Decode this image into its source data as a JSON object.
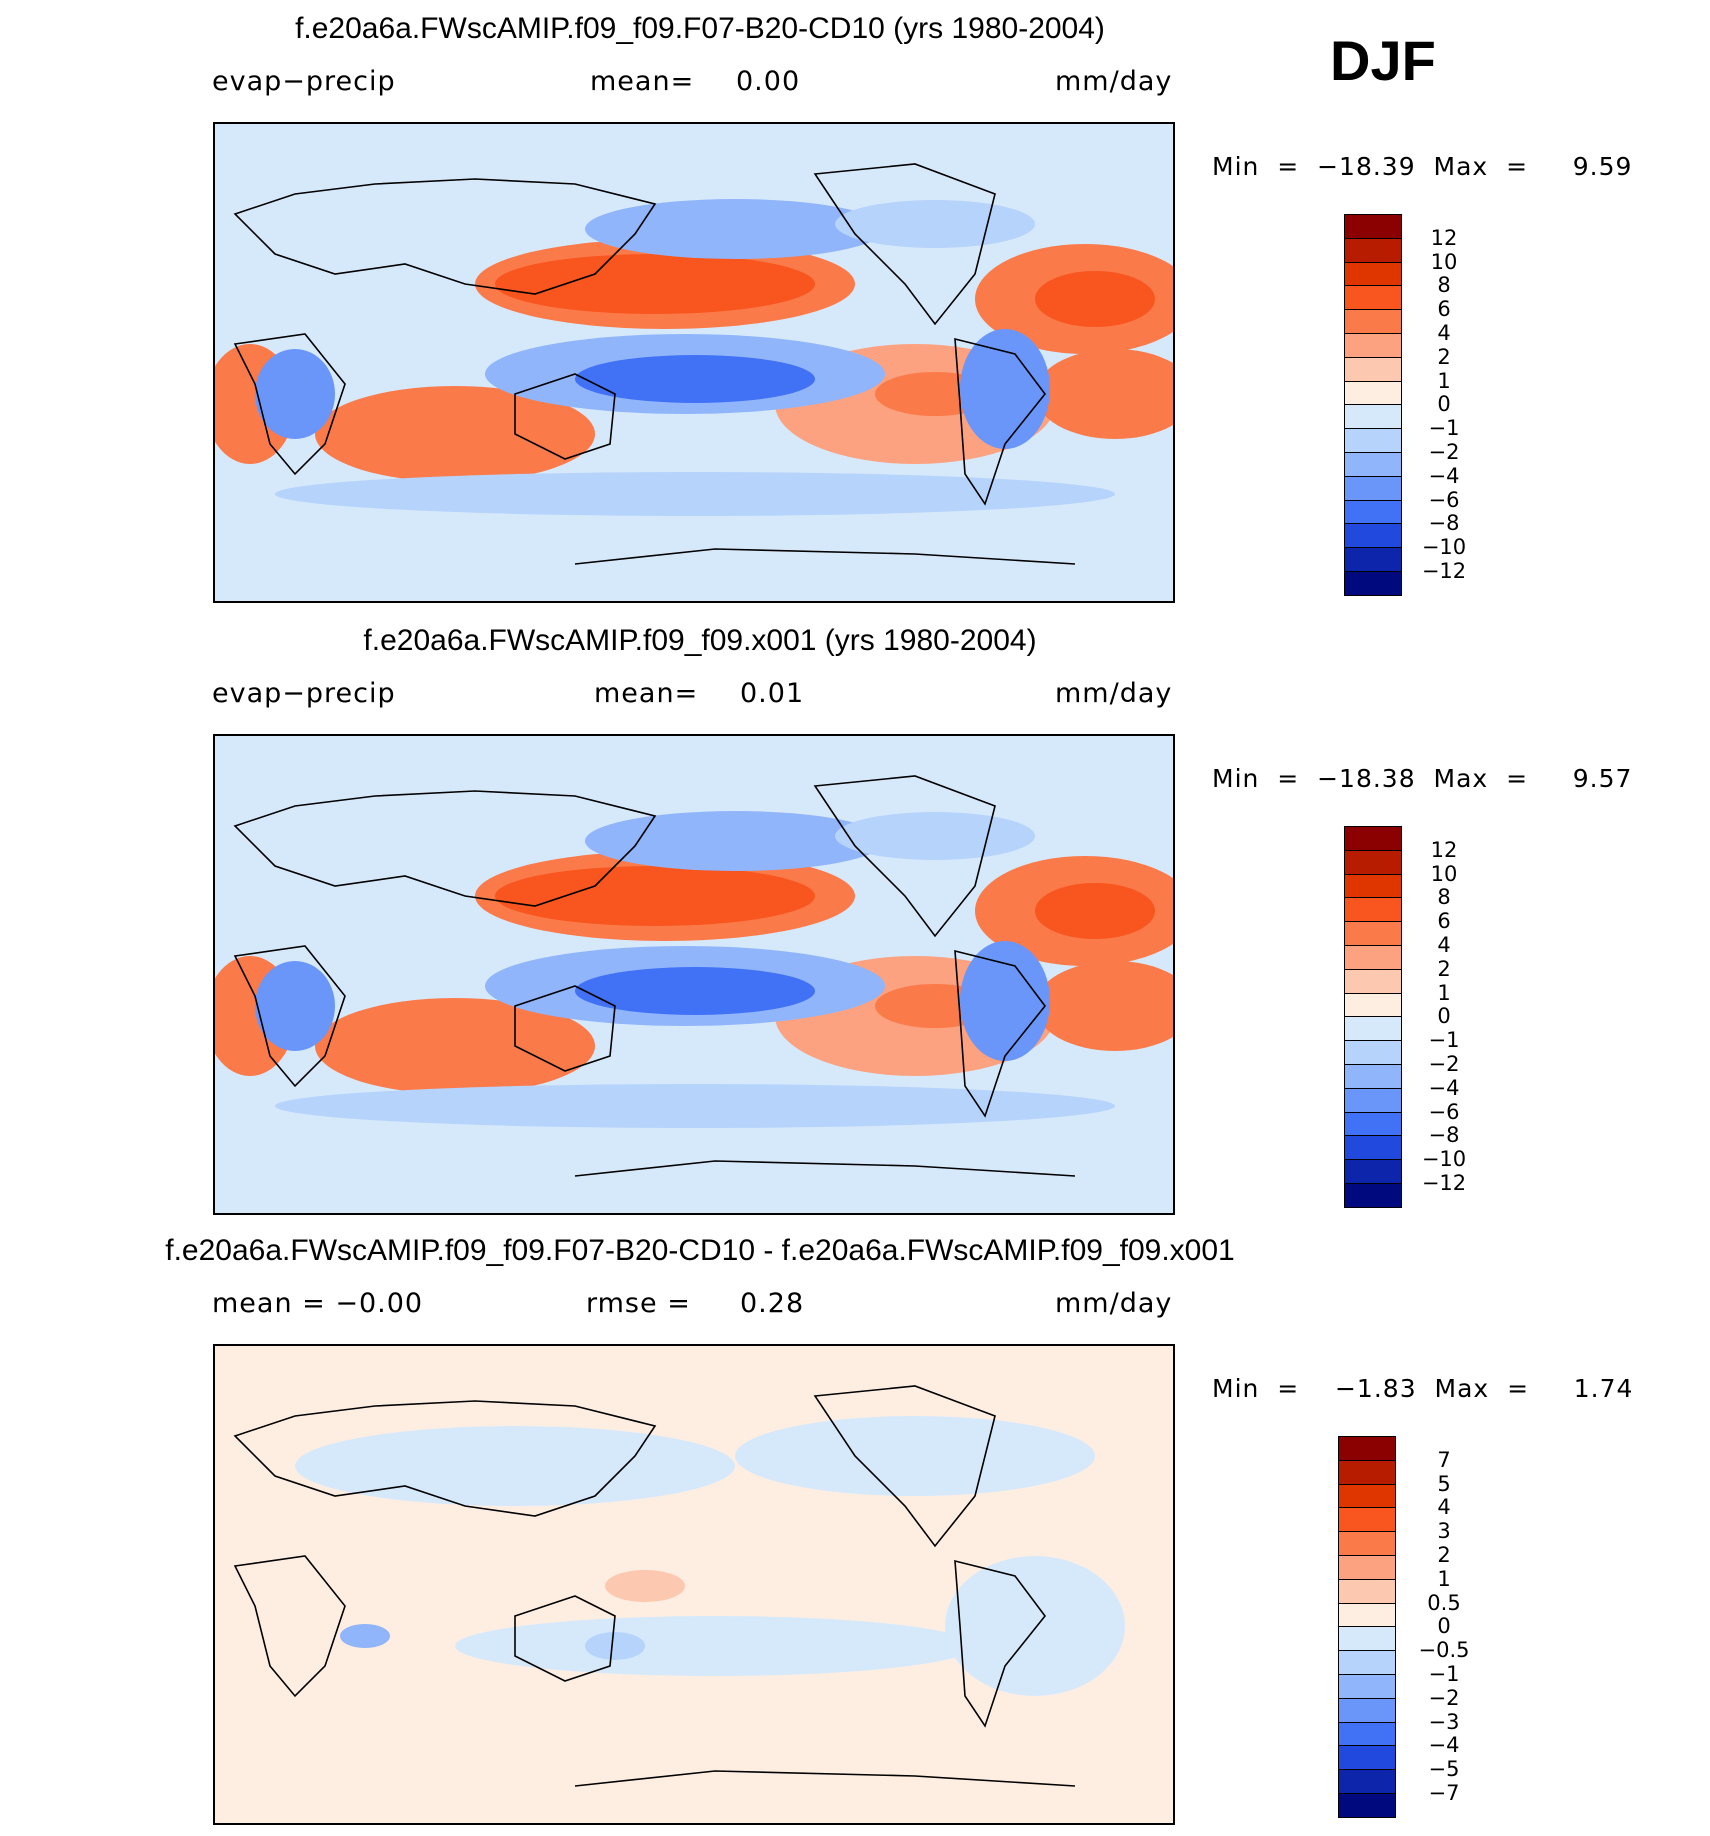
{
  "season": "DJF",
  "panels": [
    {
      "title": "f.e20a6a.FWscAMIP.f09_f09.F07-B20-CD10 (yrs 1980-2004)",
      "left_label": "evap−precip",
      "mid_label": "mean=",
      "mid_value": "0.00",
      "units": "mm/day",
      "minmax": "Min  =  −18.39  Max  =     9.59"
    },
    {
      "title": "f.e20a6a.FWscAMIP.f09_f09.x001 (yrs 1980-2004)",
      "left_label": "evap−precip",
      "mid_label": "mean=",
      "mid_value": "0.01",
      "units": "mm/day",
      "minmax": "Min  =  −18.38  Max  =     9.57"
    },
    {
      "title": "f.e20a6a.FWscAMIP.f09_f09.F07-B20-CD10 - f.e20a6a.FWscAMIP.f09_f09.x001",
      "left_label": "mean  =   −0.00",
      "mid_label": "rmse  =",
      "mid_value": "0.28",
      "units": "mm/day",
      "minmax": "Min  =    −1.83  Max  =     1.74"
    }
  ],
  "colorbars": [
    {
      "labels": [
        "12",
        "10",
        "8",
        "6",
        "4",
        "2",
        "1",
        "0",
        "−1",
        "−2",
        "−4",
        "−6",
        "−8",
        "−10",
        "−12"
      ],
      "colors": [
        "#8b0000",
        "#b81c00",
        "#df3600",
        "#f8561e",
        "#fb7a4a",
        "#fca280",
        "#fdc8b0",
        "#feeee2",
        "#d6e9fb",
        "#b6d3fb",
        "#90b5fb",
        "#6a96fa",
        "#4172f5",
        "#2249de",
        "#0d25ab",
        "#000a7e"
      ]
    },
    {
      "labels": [
        "12",
        "10",
        "8",
        "6",
        "4",
        "2",
        "1",
        "0",
        "−1",
        "−2",
        "−4",
        "−6",
        "−8",
        "−10",
        "−12"
      ],
      "colors": [
        "#8b0000",
        "#b81c00",
        "#df3600",
        "#f8561e",
        "#fb7a4a",
        "#fca280",
        "#fdc8b0",
        "#feeee2",
        "#d6e9fb",
        "#b6d3fb",
        "#90b5fb",
        "#6a96fa",
        "#4172f5",
        "#2249de",
        "#0d25ab",
        "#000a7e"
      ]
    },
    {
      "labels": [
        "7",
        "5",
        "4",
        "3",
        "2",
        "1",
        "0.5",
        "0",
        "−0.5",
        "−1",
        "−2",
        "−3",
        "−4",
        "−5",
        "−7"
      ],
      "colors": [
        "#8b0000",
        "#b81c00",
        "#df3600",
        "#f8561e",
        "#fb7a4a",
        "#fca280",
        "#fdc8b0",
        "#feeee2",
        "#d6e9fb",
        "#b6d3fb",
        "#90b5fb",
        "#6a96fa",
        "#4172f5",
        "#2249de",
        "#0d25ab",
        "#000a7e"
      ]
    }
  ],
  "chart_data": [
    {
      "type": "heatmap",
      "title": "f.e20a6a.FWscAMIP.f09_f09.F07-B20-CD10 (yrs 1980-2004)",
      "variable": "evap−precip",
      "units": "mm/day",
      "mean": 0.0,
      "min": -18.39,
      "max": 9.59,
      "levels": [
        -12,
        -10,
        -8,
        -6,
        -4,
        -2,
        -1,
        0,
        1,
        2,
        4,
        6,
        8,
        10,
        12
      ]
    },
    {
      "type": "heatmap",
      "title": "f.e20a6a.FWscAMIP.f09_f09.x001 (yrs 1980-2004)",
      "variable": "evap−precip",
      "units": "mm/day",
      "mean": 0.01,
      "min": -18.38,
      "max": 9.57,
      "levels": [
        -12,
        -10,
        -8,
        -6,
        -4,
        -2,
        -1,
        0,
        1,
        2,
        4,
        6,
        8,
        10,
        12
      ]
    },
    {
      "type": "heatmap",
      "title": "f.e20a6a.FWscAMIP.f09_f09.F07-B20-CD10 - f.e20a6a.FWscAMIP.f09_f09.x001",
      "variable": "difference",
      "units": "mm/day",
      "mean": -0.0,
      "rmse": 0.28,
      "min": -1.83,
      "max": 1.74,
      "levels": [
        -7,
        -5,
        -4,
        -3,
        -2,
        -1,
        -0.5,
        0,
        0.5,
        1,
        2,
        3,
        4,
        5,
        7
      ]
    }
  ]
}
